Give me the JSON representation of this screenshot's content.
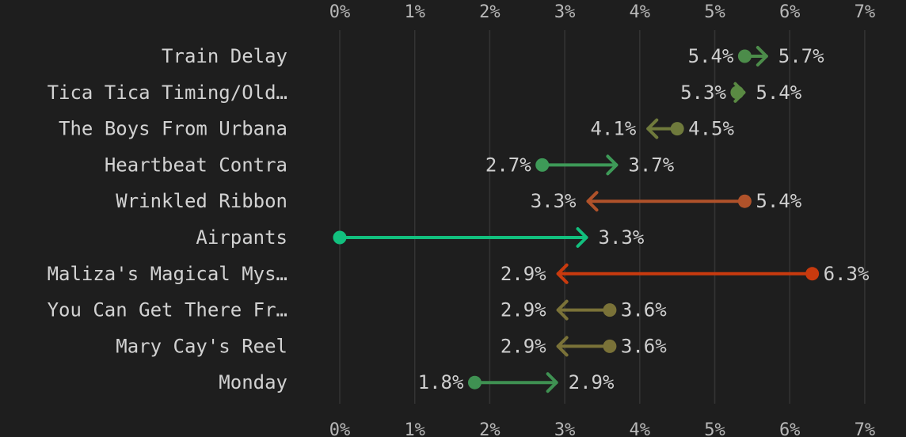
{
  "chart_data": {
    "type": "arrow-dumbbell",
    "title": "",
    "xlabel": "",
    "ylabel": "",
    "xlim": [
      0,
      7
    ],
    "x_ticks": [
      "0%",
      "1%",
      "2%",
      "3%",
      "4%",
      "5%",
      "6%",
      "7%"
    ],
    "grid": "vertical",
    "value_suffix": "%",
    "rows": [
      {
        "label": "Train Delay",
        "from": 5.4,
        "to": 5.7,
        "from_label": "5.4%",
        "to_label": "5.7%",
        "color": "#4c8c4a"
      },
      {
        "label": "Tica Tica Timing/Old…",
        "from": 5.3,
        "to": 5.4,
        "from_label": "5.3%",
        "to_label": "5.4%",
        "color": "#5a8a43"
      },
      {
        "label": "The Boys From Urbana",
        "from": 4.5,
        "to": 4.1,
        "from_label": "4.5%",
        "to_label": "4.1%",
        "color": "#6f7a3c"
      },
      {
        "label": "Heartbeat Contra",
        "from": 2.7,
        "to": 3.7,
        "from_label": "2.7%",
        "to_label": "3.7%",
        "color": "#3e9a58"
      },
      {
        "label": "Wrinkled Ribbon",
        "from": 5.4,
        "to": 3.3,
        "from_label": "5.4%",
        "to_label": "3.3%",
        "color": "#b0522a"
      },
      {
        "label": "Airpants",
        "from": 0.0,
        "to": 3.3,
        "from_label": "",
        "to_label": "3.3%",
        "color": "#12c07e"
      },
      {
        "label": "Maliza's Magical Mys…",
        "from": 6.3,
        "to": 2.9,
        "from_label": "6.3%",
        "to_label": "2.9%",
        "color": "#c83a0e"
      },
      {
        "label": "You Can Get There Fr…",
        "from": 3.6,
        "to": 2.9,
        "from_label": "3.6%",
        "to_label": "2.9%",
        "color": "#7a7238"
      },
      {
        "label": "Mary Cay's Reel",
        "from": 3.6,
        "to": 2.9,
        "from_label": "3.6%",
        "to_label": "2.9%",
        "color": "#7a7238"
      },
      {
        "label": "Monday",
        "from": 1.8,
        "to": 2.9,
        "from_label": "1.8%",
        "to_label": "2.9%",
        "color": "#3f9152"
      }
    ]
  }
}
